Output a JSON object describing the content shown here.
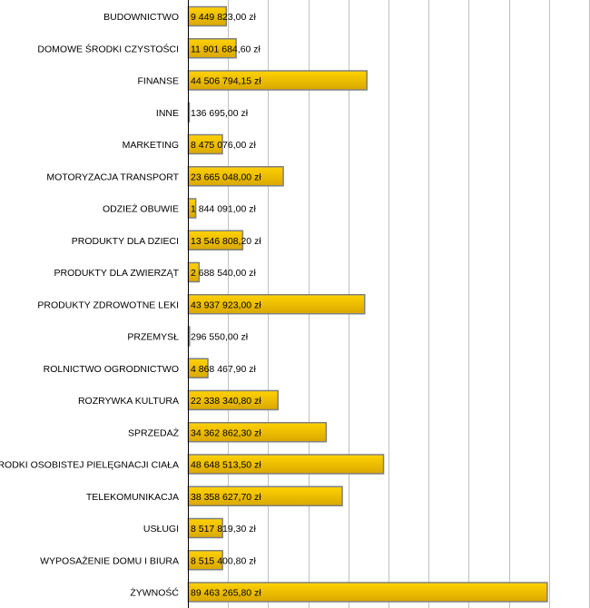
{
  "chart_data": {
    "type": "bar",
    "orientation": "horizontal",
    "title": "",
    "xlabel": "",
    "ylabel": "",
    "xlim": [
      0,
      100000000
    ],
    "grid_step": 10000000,
    "grid": true,
    "bar_color": "#F2C200",
    "bar_border": "#808080",
    "categories": [
      "BUDOWNICTWO",
      "DOMOWE ŚRODKI CZYSTOŚCI",
      "FINANSE",
      "INNE",
      "MARKETING",
      "MOTORYZACJA TRANSPORT",
      "ODZIEŻ OBUWIE",
      "PRODUKTY DLA DZIECI",
      "PRODUKTY DLA ZWIERZĄT",
      "PRODUKTY ZDROWOTNE LEKI",
      "PRZEMYSŁ",
      "ROLNICTWO OGRODNICTWO",
      "ROZRYWKA KULTURA",
      "SPRZEDAŻ",
      "ŚRODKI OSOBISTEJ PIELĘGNACJI CIAŁA",
      "TELEKOMUNIKACJA",
      "USŁUGI",
      "WYPOSAŻENIE DOMU I BIURA",
      "ŻYWNOŚĆ"
    ],
    "values": [
      9449823.0,
      11901684.6,
      44506794.15,
      136695.0,
      8475076.0,
      23665048.0,
      1844091.0,
      13546808.2,
      2688540.0,
      43937923.0,
      296550.0,
      4868467.9,
      22338340.8,
      34362862.3,
      48648513.5,
      38358627.7,
      8517819.3,
      8515400.8,
      89463265.8
    ],
    "labels": [
      "9 449 823,00 zł",
      "11 901 684,60 zł",
      "44 506 794,15 zł",
      "136 695,00 zł",
      "8 475 076,00 zł",
      "23 665 048,00 zł",
      "1 844 091,00 zł",
      "13 546 808,20 zł",
      "2 688 540,00 zł",
      "43 937 923,00 zł",
      "296 550,00 zł",
      "4 868 467,90 zł",
      "22 338 340,80 zł",
      "34 362 862,30 zł",
      "48 648 513,50 zł",
      "38 358 627,70 zł",
      "8 517 819,30 zł",
      "8 515 400,80 zł",
      "89 463 265,80 zł"
    ]
  }
}
